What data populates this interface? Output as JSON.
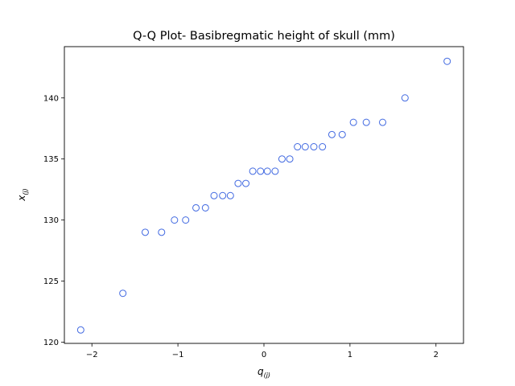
{
  "chart_data": {
    "type": "scatter",
    "title": "Q-Q Plot- Basibregmatic height of skull (mm)",
    "xlabel": {
      "main": "q",
      "sub": "(j)"
    },
    "ylabel": {
      "main": "x",
      "sub": "(j)"
    },
    "xlim": [
      -2.32,
      2.32
    ],
    "ylim": [
      119.9,
      144.2
    ],
    "xticks": [
      -2,
      -1,
      0,
      1,
      2
    ],
    "yticks": [
      120,
      125,
      130,
      135,
      140
    ],
    "grid": false,
    "marker_color": "#4169e1",
    "marker_style": "hollow-circle",
    "x": [
      -2.13,
      -1.64,
      -1.38,
      -1.19,
      -1.04,
      -0.91,
      -0.79,
      -0.68,
      -0.58,
      -0.48,
      -0.39,
      -0.3,
      -0.21,
      -0.13,
      -0.04,
      0.04,
      0.13,
      0.21,
      0.3,
      0.39,
      0.48,
      0.58,
      0.68,
      0.79,
      0.91,
      1.04,
      1.19,
      1.38,
      1.64,
      2.13
    ],
    "y": [
      121,
      124,
      129,
      129,
      130,
      130,
      131,
      131,
      132,
      132,
      132,
      133,
      133,
      134,
      134,
      134,
      134,
      135,
      135,
      136,
      136,
      136,
      136,
      137,
      137,
      138,
      138,
      138,
      140,
      143
    ]
  }
}
